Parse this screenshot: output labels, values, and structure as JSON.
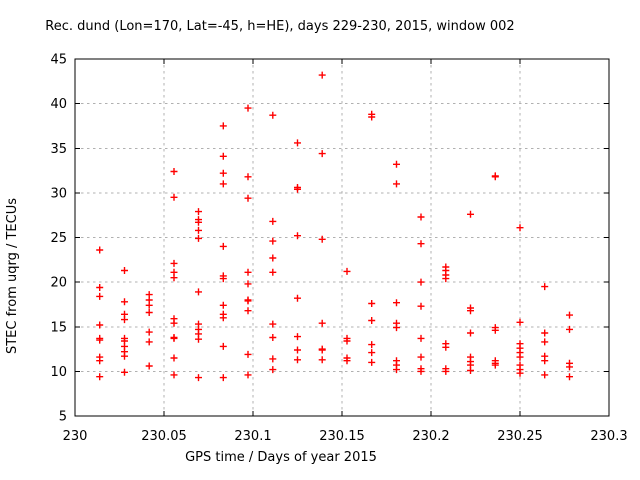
{
  "canvas": {
    "background": "#ffffff",
    "axis_color": "#000000",
    "grid_color": "#b0b0b0"
  },
  "chart_data": {
    "type": "scatter",
    "title": "Rec. dund (Lon=170, Lat=-45, h=HE), days 229-230, 2015, window 002",
    "xlabel": "GPS time / Days of year 2015",
    "ylabel": "STEC from uqrg / TECUs",
    "xlim": [
      230,
      230.3
    ],
    "ylim": [
      5,
      45
    ],
    "xticks": [
      230,
      230.05,
      230.1,
      230.15,
      230.2,
      230.25,
      230.3
    ],
    "xtick_labels": [
      "230",
      "230.05",
      "230.1",
      "230.15",
      "230.2",
      "230.25",
      "230.3"
    ],
    "yticks": [
      5,
      10,
      15,
      20,
      25,
      30,
      35,
      40,
      45
    ],
    "ytick_labels": [
      "5",
      "10",
      "15",
      "20",
      "25",
      "30",
      "35",
      "40",
      "45"
    ],
    "grid": true,
    "legend": "none",
    "marker": "plus",
    "marker_color": "#ff0000",
    "series": [
      {
        "name": "STEC",
        "columns": [
          {
            "x": 230.0139,
            "values": [
              23.6,
              19.4,
              18.4,
              15.2,
              13.7,
              13.5,
              11.6,
              11.2,
              9.4
            ]
          },
          {
            "x": 230.0278,
            "values": [
              21.3,
              17.8,
              16.4,
              15.8,
              13.7,
              13.4,
              12.8,
              12.2,
              11.7,
              9.9
            ]
          },
          {
            "x": 230.0417,
            "values": [
              18.6,
              18.0,
              17.4,
              16.6,
              14.4,
              13.3,
              10.6
            ]
          },
          {
            "x": 230.0556,
            "values": [
              32.4,
              29.5,
              22.1,
              21.1,
              20.5,
              15.9,
              15.4,
              13.8,
              13.7,
              11.5,
              9.6
            ]
          },
          {
            "x": 230.0694,
            "values": [
              27.9,
              27.0,
              26.7,
              25.8,
              24.9,
              18.9,
              15.3,
              14.7,
              14.2,
              13.6,
              9.3
            ]
          },
          {
            "x": 230.0833,
            "values": [
              37.5,
              34.1,
              32.2,
              31.0,
              24.0,
              20.7,
              20.4,
              17.4,
              16.4,
              16.0,
              12.8,
              9.3
            ]
          },
          {
            "x": 230.0972,
            "values": [
              39.5,
              31.8,
              29.4,
              21.1,
              19.8,
              18.0,
              17.9,
              16.8,
              11.9,
              9.6
            ]
          },
          {
            "x": 230.1111,
            "values": [
              38.7,
              26.8,
              24.6,
              22.7,
              21.1,
              15.3,
              13.8,
              11.4,
              10.2
            ]
          },
          {
            "x": 230.125,
            "values": [
              35.6,
              30.6,
              30.4,
              25.2,
              18.2,
              13.9,
              12.4,
              11.3
            ]
          },
          {
            "x": 230.1389,
            "values": [
              43.2,
              34.4,
              24.8,
              15.4,
              12.5,
              12.4,
              11.3
            ]
          },
          {
            "x": 230.1528,
            "values": [
              21.2,
              13.7,
              13.4,
              11.5,
              11.2
            ]
          },
          {
            "x": 230.1667,
            "values": [
              38.8,
              38.5,
              17.6,
              15.7,
              13.0,
              12.1,
              11.0
            ]
          },
          {
            "x": 230.1806,
            "values": [
              33.2,
              31.0,
              17.7,
              15.4,
              14.9,
              11.2,
              10.7,
              10.2
            ]
          },
          {
            "x": 230.1944,
            "values": [
              27.3,
              24.3,
              20.0,
              17.3,
              13.7,
              11.6,
              10.3,
              10.0
            ]
          },
          {
            "x": 230.2083,
            "values": [
              21.7,
              21.3,
              20.8,
              20.4,
              13.1,
              12.7,
              10.3,
              10.0
            ]
          },
          {
            "x": 230.2222,
            "values": [
              27.6,
              17.1,
              16.8,
              14.3,
              11.6,
              11.1,
              10.7,
              10.1
            ]
          },
          {
            "x": 230.2361,
            "values": [
              31.9,
              31.8,
              14.9,
              14.6,
              11.2,
              10.9,
              10.7
            ]
          },
          {
            "x": 230.25,
            "values": [
              26.1,
              15.5,
              13.1,
              12.6,
              12.1,
              11.6,
              10.7,
              10.2,
              9.8
            ]
          },
          {
            "x": 230.2639,
            "values": [
              19.5,
              14.3,
              13.3,
              11.7,
              11.2,
              9.6
            ]
          },
          {
            "x": 230.2778,
            "values": [
              16.3,
              14.7,
              10.9,
              10.5,
              9.4
            ]
          }
        ]
      }
    ]
  }
}
